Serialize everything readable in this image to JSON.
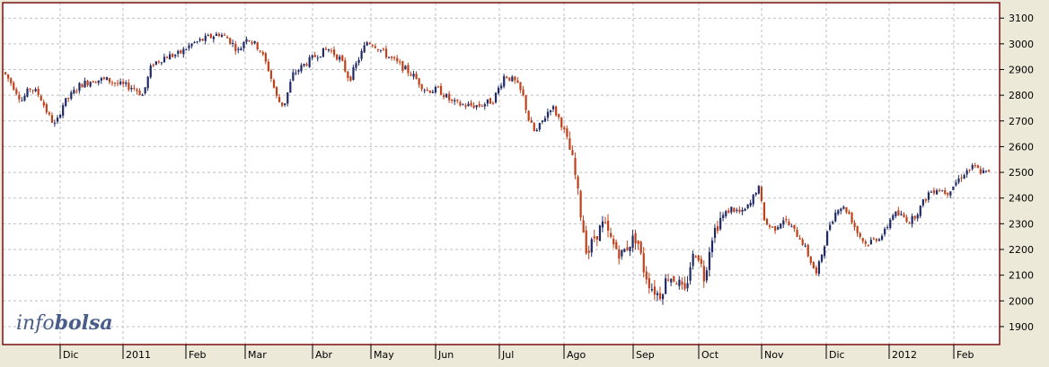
{
  "logo": {
    "part1": "info",
    "part2": "bolsa"
  },
  "colors": {
    "up": "#1f2a66",
    "down": "#c0401a",
    "frame": "#7a1010",
    "grid": "#bfbfbf",
    "background": "#ffffff",
    "gutter": "#ece9d8"
  },
  "chart_data": {
    "type": "candlestick",
    "title": "",
    "xlabel": "",
    "ylabel": "",
    "ylim": [
      1830,
      3160
    ],
    "y_ticks": [
      1900,
      2000,
      2100,
      2200,
      2300,
      2400,
      2500,
      2600,
      2700,
      2800,
      2900,
      3000,
      3100
    ],
    "x_ticks": [
      "Dic",
      "2011",
      "Feb",
      "Mar",
      "Abr",
      "May",
      "Jun",
      "Jul",
      "Ago",
      "Sep",
      "Oct",
      "Nov",
      "Dic",
      "2012",
      "Feb"
    ],
    "grid": true,
    "series": [
      {
        "name": "",
        "keypoints": [
          [
            0,
            2890
          ],
          [
            10,
            2840
          ],
          [
            20,
            2780
          ],
          [
            30,
            2830
          ],
          [
            40,
            2800
          ],
          [
            50,
            2720
          ],
          [
            58,
            2680
          ],
          [
            65,
            2760
          ],
          [
            75,
            2800
          ],
          [
            85,
            2840
          ],
          [
            100,
            2860
          ],
          [
            115,
            2860
          ],
          [
            130,
            2840
          ],
          [
            145,
            2830
          ],
          [
            155,
            2800
          ],
          [
            165,
            2920
          ],
          [
            180,
            2950
          ],
          [
            195,
            2960
          ],
          [
            210,
            3000
          ],
          [
            225,
            3020
          ],
          [
            240,
            3040
          ],
          [
            250,
            3020
          ],
          [
            262,
            2970
          ],
          [
            270,
            3030
          ],
          [
            285,
            2980
          ],
          [
            295,
            2900
          ],
          [
            305,
            2780
          ],
          [
            312,
            2760
          ],
          [
            322,
            2880
          ],
          [
            335,
            2920
          ],
          [
            350,
            2960
          ],
          [
            362,
            2980
          ],
          [
            375,
            2940
          ],
          [
            385,
            2860
          ],
          [
            395,
            2940
          ],
          [
            405,
            3010
          ],
          [
            412,
            3000
          ],
          [
            425,
            2960
          ],
          [
            440,
            2920
          ],
          [
            455,
            2880
          ],
          [
            470,
            2820
          ],
          [
            485,
            2820
          ],
          [
            500,
            2770
          ],
          [
            515,
            2760
          ],
          [
            530,
            2760
          ],
          [
            545,
            2780
          ],
          [
            558,
            2880
          ],
          [
            570,
            2850
          ],
          [
            578,
            2800
          ],
          [
            585,
            2700
          ],
          [
            592,
            2650
          ],
          [
            600,
            2700
          ],
          [
            610,
            2760
          ],
          [
            620,
            2700
          ],
          [
            628,
            2620
          ],
          [
            635,
            2520
          ],
          [
            642,
            2350
          ],
          [
            650,
            2180
          ],
          [
            658,
            2250
          ],
          [
            668,
            2300
          ],
          [
            678,
            2220
          ],
          [
            688,
            2180
          ],
          [
            698,
            2230
          ],
          [
            705,
            2250
          ],
          [
            712,
            2130
          ],
          [
            720,
            2060
          ],
          [
            730,
            2020
          ],
          [
            740,
            2100
          ],
          [
            750,
            2080
          ],
          [
            758,
            2020
          ],
          [
            765,
            2150
          ],
          [
            772,
            2200
          ],
          [
            780,
            2090
          ],
          [
            788,
            2250
          ],
          [
            798,
            2320
          ],
          [
            810,
            2360
          ],
          [
            822,
            2340
          ],
          [
            832,
            2380
          ],
          [
            840,
            2450
          ],
          [
            848,
            2300
          ],
          [
            858,
            2280
          ],
          [
            868,
            2320
          ],
          [
            878,
            2280
          ],
          [
            888,
            2240
          ],
          [
            898,
            2160
          ],
          [
            905,
            2100
          ],
          [
            912,
            2200
          ],
          [
            920,
            2300
          ],
          [
            930,
            2370
          ],
          [
            940,
            2350
          ],
          [
            950,
            2270
          ],
          [
            960,
            2220
          ],
          [
            970,
            2240
          ],
          [
            980,
            2260
          ],
          [
            990,
            2340
          ],
          [
            1000,
            2330
          ],
          [
            1010,
            2310
          ],
          [
            1020,
            2360
          ],
          [
            1030,
            2420
          ],
          [
            1040,
            2440
          ],
          [
            1050,
            2420
          ],
          [
            1060,
            2460
          ],
          [
            1070,
            2500
          ],
          [
            1080,
            2520
          ],
          [
            1090,
            2500
          ],
          [
            1100,
            2495
          ]
        ]
      }
    ]
  }
}
